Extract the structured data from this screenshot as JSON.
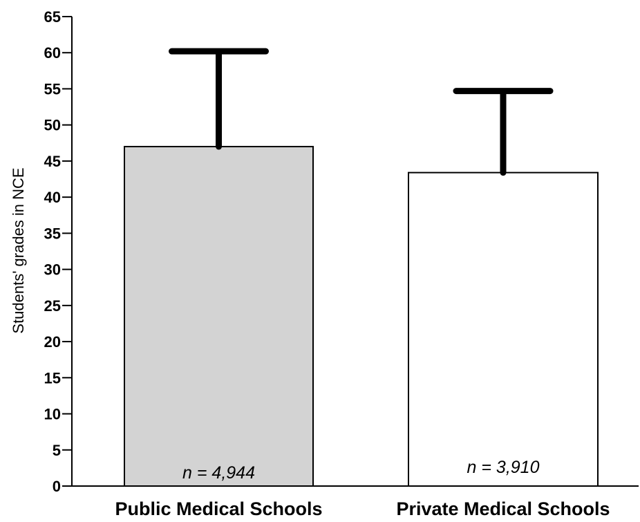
{
  "chart_data": {
    "type": "bar",
    "categories": [
      "Public Medical Schools",
      "Private Medical Schools"
    ],
    "values": [
      47,
      43.4
    ],
    "error_upper": [
      60.2,
      54.7
    ],
    "annotations": [
      "n = 4,944",
      "n = 3,910"
    ],
    "ylabel": "Students' grades in NCE",
    "ylim": [
      0,
      65
    ],
    "yticks": [
      0,
      5,
      10,
      15,
      20,
      25,
      30,
      35,
      40,
      45,
      50,
      55,
      60,
      65
    ],
    "grid": false,
    "colors": {
      "bar_fill": [
        "#d3d3d3",
        "#ffffff"
      ],
      "bar_stroke": "#000000",
      "error_bar": "#000000",
      "axis": "#000000"
    }
  }
}
